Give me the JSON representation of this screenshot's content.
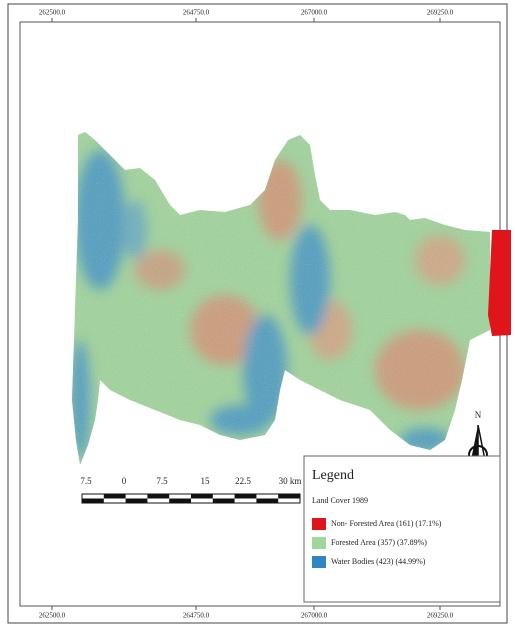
{
  "frame": {
    "top_labels": [
      "262500.0",
      "264750.0",
      "267000.0",
      "269250.0"
    ],
    "bottom_labels": [
      "262500.0",
      "264750.0",
      "267000.0",
      "269250.0"
    ]
  },
  "scale_bar": {
    "labels": [
      "7.5",
      "0",
      "7.5",
      "15",
      "22.5",
      "30 km"
    ]
  },
  "north_arrow": {
    "label": "N"
  },
  "legend": {
    "title": "Legend",
    "subtitle": "Land Cover 1989",
    "items": [
      {
        "label": "Non- Forested Area (161) (17.1%)",
        "color": "#e0151b"
      },
      {
        "label": "Forested Area (357) (37.89%)",
        "color": "#9fd69a"
      },
      {
        "label": "Water Bodies (423) (44.99%)",
        "color": "#2f86c4"
      }
    ]
  }
}
